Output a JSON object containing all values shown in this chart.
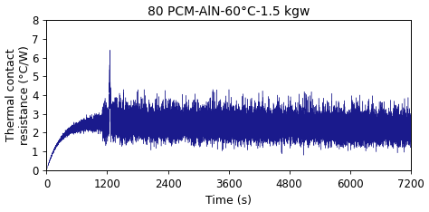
{
  "title": "80 PCM-AlN-60°C-1.5 kgw",
  "xlabel": "Time (s)",
  "ylabel": "Thermal contact\nresistance (°C/W)",
  "xlim": [
    0,
    7200
  ],
  "ylim": [
    0,
    8
  ],
  "xticks": [
    0,
    1200,
    2400,
    3600,
    4800,
    6000,
    7200
  ],
  "yticks": [
    0,
    1,
    2,
    3,
    4,
    5,
    6,
    7,
    8
  ],
  "line_color": "#1a1a8c",
  "background_color": "#ffffff",
  "title_fontsize": 10,
  "label_fontsize": 9,
  "tick_fontsize": 8.5
}
